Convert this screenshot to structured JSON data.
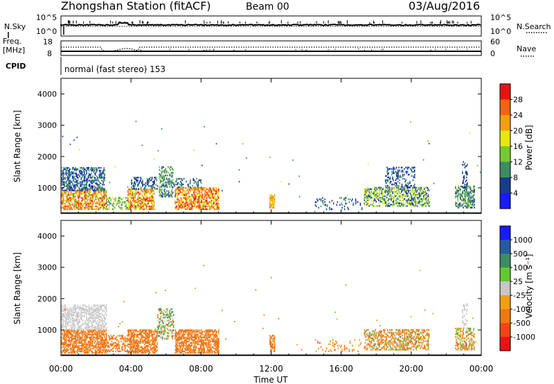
{
  "header": {
    "station": "Zhongshan Station (fitACF)",
    "beam": "Beam 00",
    "date": "03/Aug/2016"
  },
  "top_panels": {
    "nsky_label": "N.Sky",
    "nsearch_label": "N.Search",
    "noise_ticks": [
      "10^5",
      "10^0"
    ],
    "freq_label": "Freq.",
    "freq_unit": "[MHz]",
    "freq_ticks": [
      "18",
      "8"
    ],
    "nave_label": "Nave",
    "nave_ticks": [
      "60",
      "0"
    ],
    "cpid_label": "CPID",
    "cpid_text": "normal (fast stereo) 153"
  },
  "colors": {
    "power": [
      "#1a1aff",
      "#1a3c8c",
      "#3c8c64",
      "#78c832",
      "#e6e614",
      "#f0a014",
      "#f06414",
      "#e61414"
    ],
    "velocity": [
      "#1a1aff",
      "#285aa0",
      "#3c8c64",
      "#64c832",
      "#c8c8c8",
      "#f0a014",
      "#f07814",
      "#f04614",
      "#e61414"
    ]
  },
  "chart_data": [
    {
      "type": "heatmap",
      "name": "power",
      "ylabel": "Slant Range [km]",
      "yticks": [
        "4000",
        "3000",
        "2000",
        "1000"
      ],
      "colorbar_label": "Power [dB]",
      "colorbar_ticks": [
        "28",
        "24",
        "20",
        "16",
        "12",
        "8",
        "4"
      ],
      "colorbar_range": [
        0,
        32
      ],
      "ylim": [
        180,
        4500
      ],
      "xlim": [
        0,
        24
      ],
      "clusters": [
        {
          "t": [
            0.0,
            2.6
          ],
          "r": [
            300,
            900
          ],
          "v": [
            14,
            30
          ],
          "d": 0.55
        },
        {
          "t": [
            0.0,
            2.5
          ],
          "r": [
            900,
            1650
          ],
          "v": [
            3,
            12
          ],
          "d": 0.45
        },
        {
          "t": [
            2.6,
            3.8
          ],
          "r": [
            300,
            700
          ],
          "v": [
            8,
            18
          ],
          "d": 0.3
        },
        {
          "t": [
            3.8,
            5.3
          ],
          "r": [
            300,
            950
          ],
          "v": [
            14,
            30
          ],
          "d": 0.55
        },
        {
          "t": [
            4.0,
            5.5
          ],
          "r": [
            950,
            1350
          ],
          "v": [
            3,
            12
          ],
          "d": 0.3
        },
        {
          "t": [
            5.6,
            6.4
          ],
          "r": [
            700,
            1650
          ],
          "v": [
            5,
            16
          ],
          "d": 0.35
        },
        {
          "t": [
            6.5,
            9.0
          ],
          "r": [
            300,
            1000
          ],
          "v": [
            16,
            31
          ],
          "d": 0.55
        },
        {
          "t": [
            6.0,
            8.0
          ],
          "r": [
            1000,
            1300
          ],
          "v": [
            4,
            12
          ],
          "d": 0.25
        },
        {
          "t": [
            11.9,
            12.2
          ],
          "r": [
            350,
            800
          ],
          "v": [
            18,
            26
          ],
          "d": 0.6
        },
        {
          "t": [
            14.5,
            17.2
          ],
          "r": [
            300,
            700
          ],
          "v": [
            3,
            12
          ],
          "d": 0.12
        },
        {
          "t": [
            17.3,
            21.0
          ],
          "r": [
            400,
            1000
          ],
          "v": [
            4,
            20
          ],
          "d": 0.45
        },
        {
          "t": [
            18.5,
            20.2
          ],
          "r": [
            1000,
            1650
          ],
          "v": [
            3,
            10
          ],
          "d": 0.25
        },
        {
          "t": [
            22.5,
            23.6
          ],
          "r": [
            350,
            1050
          ],
          "v": [
            4,
            16
          ],
          "d": 0.45
        },
        {
          "t": [
            22.9,
            23.2
          ],
          "r": [
            1000,
            1850
          ],
          "v": [
            3,
            9
          ],
          "d": 0.3
        }
      ]
    },
    {
      "type": "heatmap",
      "name": "velocity",
      "ylabel": "Slant Range [km]",
      "yticks": [
        "4000",
        "3000",
        "2000",
        "1000"
      ],
      "colorbar_label": "Velocity [m s⁻¹]",
      "colorbar_ticks": [
        "1000",
        "500",
        "100",
        "25",
        "-25",
        "-100",
        "-500",
        "-1000"
      ],
      "colorbar_range": [
        -1200,
        1200
      ],
      "ylim": [
        180,
        4500
      ],
      "xlim": [
        0,
        24
      ],
      "clusters": [
        {
          "t": [
            0.0,
            2.6
          ],
          "r": [
            250,
            1000
          ],
          "v": [
            -450,
            -120
          ],
          "d": 0.55
        },
        {
          "t": [
            0.0,
            2.6
          ],
          "r": [
            1000,
            1800
          ],
          "v": [
            -25,
            25
          ],
          "d": 0.45
        },
        {
          "t": [
            2.6,
            3.8
          ],
          "r": [
            300,
            800
          ],
          "v": [
            -300,
            -80
          ],
          "d": 0.35
        },
        {
          "t": [
            3.8,
            5.5
          ],
          "r": [
            250,
            1000
          ],
          "v": [
            -450,
            -120
          ],
          "d": 0.55
        },
        {
          "t": [
            5.5,
            6.4
          ],
          "r": [
            700,
            1650
          ],
          "v": [
            -200,
            300
          ],
          "d": 0.35
        },
        {
          "t": [
            6.5,
            9.0
          ],
          "r": [
            250,
            1000
          ],
          "v": [
            -450,
            -120
          ],
          "d": 0.55
        },
        {
          "t": [
            11.9,
            12.2
          ],
          "r": [
            300,
            800
          ],
          "v": [
            -300,
            -150
          ],
          "d": 0.6
        },
        {
          "t": [
            14.5,
            17.2
          ],
          "r": [
            300,
            700
          ],
          "v": [
            -250,
            -50
          ],
          "d": 0.12
        },
        {
          "t": [
            17.3,
            21.0
          ],
          "r": [
            350,
            1000
          ],
          "v": [
            -400,
            120
          ],
          "d": 0.45
        },
        {
          "t": [
            22.5,
            23.6
          ],
          "r": [
            350,
            1050
          ],
          "v": [
            -300,
            120
          ],
          "d": 0.45
        },
        {
          "t": [
            22.9,
            23.2
          ],
          "r": [
            1000,
            1850
          ],
          "v": [
            -25,
            25
          ],
          "d": 0.3
        }
      ]
    }
  ],
  "xaxis": {
    "ticks": [
      "00:00",
      "04:00",
      "08:00",
      "12:00",
      "16:00",
      "20:00",
      "00:00"
    ],
    "label": "Time UT"
  }
}
